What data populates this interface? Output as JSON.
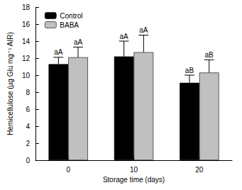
{
  "chart_data": {
    "type": "bar",
    "x_label": "Storage time (days)",
    "y_label": "Hemicellulose (μg Glu mg⁻¹ AIR)",
    "categories": [
      "0",
      "10",
      "20"
    ],
    "series": [
      {
        "name": "Control",
        "color": "#000000",
        "values": [
          11.3,
          12.2,
          9.1
        ],
        "errors": [
          0.8,
          1.8,
          0.9
        ],
        "annotations": [
          "aA",
          "aA",
          "aB"
        ]
      },
      {
        "name": "BABA",
        "color": "#c0c0c0",
        "values": [
          12.1,
          12.7,
          10.3
        ],
        "errors": [
          1.2,
          2.0,
          1.5
        ],
        "annotations": [
          "aA",
          "aA",
          "aB"
        ]
      }
    ],
    "ylim": [
      0,
      18
    ],
    "yticks": [
      0,
      2,
      4,
      6,
      8,
      10,
      12,
      14,
      16,
      18
    ],
    "grid": false,
    "legend": "top-left"
  }
}
